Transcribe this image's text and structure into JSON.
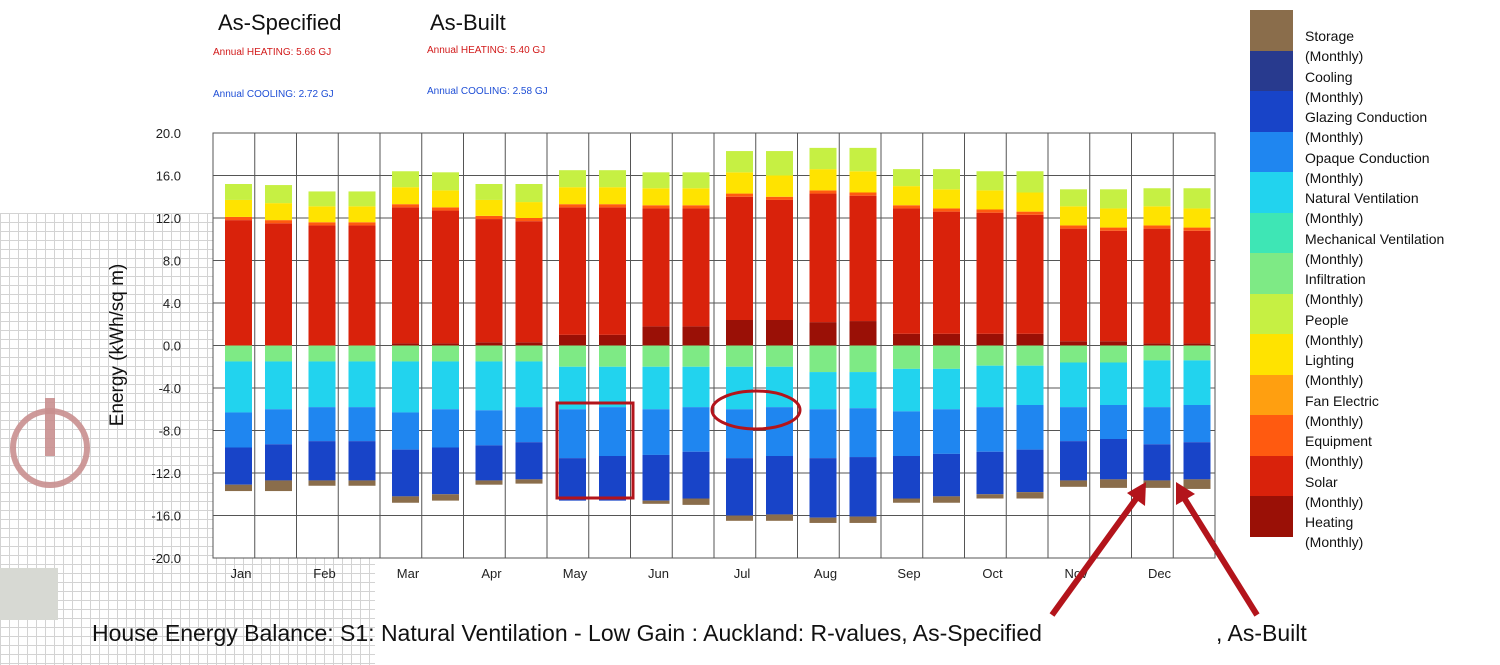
{
  "headers": {
    "as_specified": "As-Specified",
    "as_built": "As-Built",
    "spec_heating": "Annual HEATING: 5.66 GJ",
    "spec_cooling": "Annual COOLING: 2.72 GJ",
    "built_heating": "Annual HEATING: 5.40 GJ",
    "built_cooling": "Annual COOLING: 2.58 GJ"
  },
  "caption": "House Energy Balance: S1: Natural Ventilation - Low Gain : Auckland: R-values, As-Specified",
  "caption_b": ", As-Built",
  "legend_sub": "(Monthly)",
  "colors": {
    "Storage": "#8a6d4b",
    "Cooling": "#283a8e",
    "Glazing Conduction": "#1844c8",
    "Opaque Conduction": "#1f86f0",
    "Natural Ventilation": "#22d3ee",
    "Mechanical Ventilation": "#3ee6b5",
    "Infiltration": "#7eea85",
    "People": "#c6f043",
    "Lighting": "#ffe300",
    "Fan Electric": "#ff9f10",
    "Equipment": "#ff5a10",
    "Solar": "#d9220b",
    "Heating": "#9a1006"
  },
  "legend": [
    {
      "name": "Storage"
    },
    {
      "name": "Cooling"
    },
    {
      "name": "Glazing Conduction"
    },
    {
      "name": "Opaque Conduction"
    },
    {
      "name": "Natural Ventilation"
    },
    {
      "name": "Mechanical Ventilation"
    },
    {
      "name": "Infiltration"
    },
    {
      "name": "People"
    },
    {
      "name": "Lighting"
    },
    {
      "name": "Fan Electric"
    },
    {
      "name": "Equipment"
    },
    {
      "name": "Solar"
    },
    {
      "name": "Heating"
    }
  ],
  "chart_data": {
    "type": "bar",
    "stacked": true,
    "ylabel": "Energy (kWh/sq m)",
    "ylim": [
      -20,
      20
    ],
    "yticks": [
      "20.0",
      "16.0",
      "12.0",
      "8.0",
      "4.0",
      "0.0",
      "-4.0",
      "-8.0",
      "-12.0",
      "-16.0",
      "-20.0"
    ],
    "categories": [
      "Jan",
      "Feb",
      "Mar",
      "Apr",
      "May",
      "Jun",
      "Jul",
      "Aug",
      "Sep",
      "Oct",
      "Nov",
      "Dec"
    ],
    "grid": true,
    "legend_position": "right",
    "pair_labels": [
      "As-Specified",
      "As-Built"
    ],
    "positive_series": [
      "Heating",
      "Solar",
      "Equipment",
      "Fan Electric",
      "Lighting",
      "People"
    ],
    "negative_series": [
      "Infiltration",
      "Natural Ventilation",
      "Opaque Conduction",
      "Glazing Conduction",
      "Storage"
    ],
    "bars": [
      {
        "month": "Jan",
        "variant": "As-Specified",
        "pos": [
          0.0,
          11.8,
          0.3,
          0.0,
          1.6,
          1.5
        ],
        "neg": [
          1.5,
          4.8,
          3.3,
          3.5,
          0.6
        ]
      },
      {
        "month": "Jan",
        "variant": "As-Built",
        "pos": [
          0.0,
          11.5,
          0.3,
          0.0,
          1.6,
          1.7
        ],
        "neg": [
          1.5,
          4.5,
          3.3,
          3.4,
          1.0
        ]
      },
      {
        "month": "Feb",
        "variant": "As-Specified",
        "pos": [
          0.0,
          11.3,
          0.3,
          0.0,
          1.5,
          1.4
        ],
        "neg": [
          1.5,
          4.3,
          3.2,
          3.7,
          0.5
        ]
      },
      {
        "month": "Feb",
        "variant": "As-Built",
        "pos": [
          0.0,
          11.3,
          0.3,
          0.0,
          1.5,
          1.4
        ],
        "neg": [
          1.5,
          4.3,
          3.2,
          3.7,
          0.5
        ]
      },
      {
        "month": "Mar",
        "variant": "As-Specified",
        "pos": [
          0.2,
          12.8,
          0.3,
          0.0,
          1.6,
          1.5
        ],
        "neg": [
          1.5,
          4.8,
          3.5,
          4.4,
          0.6
        ]
      },
      {
        "month": "Mar",
        "variant": "As-Built",
        "pos": [
          0.2,
          12.5,
          0.3,
          0.0,
          1.6,
          1.7
        ],
        "neg": [
          1.5,
          4.5,
          3.6,
          4.4,
          0.6
        ]
      },
      {
        "month": "Apr",
        "variant": "As-Specified",
        "pos": [
          0.3,
          11.6,
          0.3,
          0.0,
          1.5,
          1.5
        ],
        "neg": [
          1.5,
          4.6,
          3.3,
          3.3,
          0.4
        ]
      },
      {
        "month": "Apr",
        "variant": "As-Built",
        "pos": [
          0.3,
          11.4,
          0.3,
          0.0,
          1.5,
          1.7
        ],
        "neg": [
          1.5,
          4.3,
          3.3,
          3.5,
          0.4
        ]
      },
      {
        "month": "May",
        "variant": "As-Specified",
        "pos": [
          1.0,
          12.0,
          0.3,
          0.0,
          1.6,
          1.6
        ],
        "neg": [
          2.0,
          4.0,
          4.6,
          4.0,
          0.0
        ]
      },
      {
        "month": "May",
        "variant": "As-Built",
        "pos": [
          1.0,
          12.0,
          0.3,
          0.0,
          1.6,
          1.6
        ],
        "neg": [
          2.0,
          3.8,
          4.6,
          4.2,
          0.0
        ]
      },
      {
        "month": "Jun",
        "variant": "As-Specified",
        "pos": [
          1.8,
          11.1,
          0.3,
          0.0,
          1.6,
          1.5
        ],
        "neg": [
          2.0,
          4.0,
          4.3,
          4.3,
          0.3
        ]
      },
      {
        "month": "Jun",
        "variant": "As-Built",
        "pos": [
          1.8,
          11.1,
          0.3,
          0.0,
          1.6,
          1.5
        ],
        "neg": [
          2.0,
          3.8,
          4.2,
          4.4,
          0.6
        ]
      },
      {
        "month": "Jul",
        "variant": "As-Specified",
        "pos": [
          2.4,
          11.6,
          0.3,
          0.0,
          2.0,
          2.0
        ],
        "neg": [
          2.0,
          4.0,
          4.6,
          5.4,
          0.5
        ]
      },
      {
        "month": "Jul",
        "variant": "As-Built",
        "pos": [
          2.4,
          11.3,
          0.3,
          0.0,
          2.0,
          2.3
        ],
        "neg": [
          2.0,
          3.8,
          4.6,
          5.5,
          0.6
        ]
      },
      {
        "month": "Aug",
        "variant": "As-Specified",
        "pos": [
          2.2,
          12.1,
          0.3,
          0.0,
          2.0,
          2.0
        ],
        "neg": [
          2.5,
          3.5,
          4.6,
          5.6,
          0.5
        ]
      },
      {
        "month": "Aug",
        "variant": "As-Built",
        "pos": [
          2.3,
          11.8,
          0.3,
          0.0,
          2.0,
          2.2
        ],
        "neg": [
          2.5,
          3.4,
          4.6,
          5.6,
          0.6
        ]
      },
      {
        "month": "Sep",
        "variant": "As-Specified",
        "pos": [
          1.1,
          11.8,
          0.3,
          0.0,
          1.8,
          1.6
        ],
        "neg": [
          2.2,
          4.0,
          4.2,
          4.0,
          0.4
        ]
      },
      {
        "month": "Sep",
        "variant": "As-Built",
        "pos": [
          1.1,
          11.5,
          0.3,
          0.0,
          1.8,
          1.9
        ],
        "neg": [
          2.2,
          3.8,
          4.2,
          4.0,
          0.6
        ]
      },
      {
        "month": "Oct",
        "variant": "As-Specified",
        "pos": [
          1.1,
          11.4,
          0.3,
          0.0,
          1.8,
          1.8
        ],
        "neg": [
          1.9,
          3.9,
          4.2,
          4.0,
          0.4
        ]
      },
      {
        "month": "Oct",
        "variant": "As-Built",
        "pos": [
          1.1,
          11.2,
          0.3,
          0.0,
          1.8,
          2.0
        ],
        "neg": [
          1.9,
          3.7,
          4.2,
          4.0,
          0.6
        ]
      },
      {
        "month": "Nov",
        "variant": "As-Specified",
        "pos": [
          0.4,
          10.6,
          0.3,
          0.0,
          1.8,
          1.6
        ],
        "neg": [
          1.6,
          4.2,
          3.2,
          3.7,
          0.6
        ]
      },
      {
        "month": "Nov",
        "variant": "As-Built",
        "pos": [
          0.4,
          10.4,
          0.3,
          0.0,
          1.8,
          1.8
        ],
        "neg": [
          1.6,
          4.0,
          3.2,
          3.8,
          0.8
        ]
      },
      {
        "month": "Dec",
        "variant": "As-Specified",
        "pos": [
          0.2,
          10.8,
          0.3,
          0.0,
          1.8,
          1.7
        ],
        "neg": [
          1.4,
          4.4,
          3.5,
          3.4,
          0.7
        ]
      },
      {
        "month": "Dec",
        "variant": "As-Built",
        "pos": [
          0.2,
          10.6,
          0.3,
          0.0,
          1.8,
          1.9
        ],
        "neg": [
          1.4,
          4.2,
          3.5,
          3.5,
          0.9
        ]
      }
    ]
  }
}
